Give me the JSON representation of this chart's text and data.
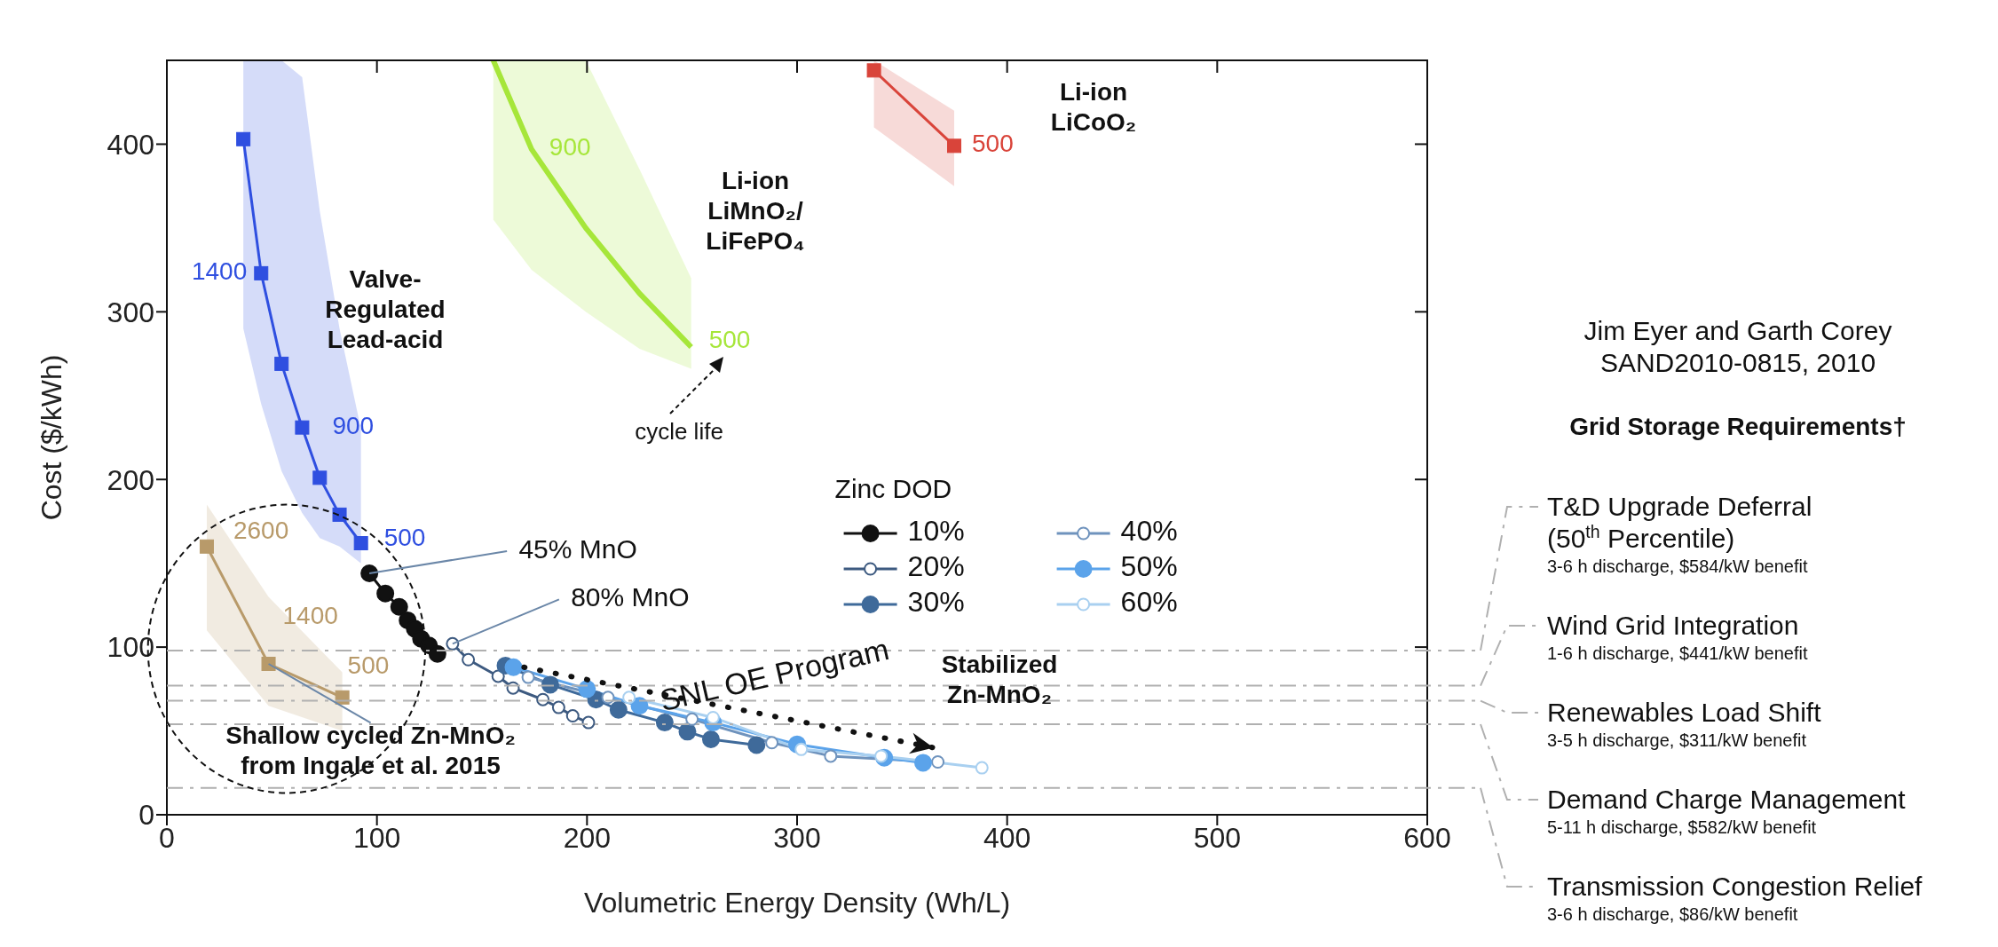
{
  "chart_data": {
    "type": "line",
    "xlabel": "Volumetric Energy Density (Wh/L)",
    "ylabel": "Cost ($/kWh)",
    "xlim": [
      0,
      600
    ],
    "ylim": [
      0,
      450
    ],
    "xticks": [
      0,
      100,
      200,
      300,
      400,
      500,
      600
    ],
    "yticks": [
      0,
      100,
      200,
      300,
      400
    ],
    "legend": "center",
    "legend_title": "Zinc DOD",
    "series": [
      {
        "color": "#2f4fe0",
        "marker": "square",
        "x": [
          36.4,
          44.9,
          54.6,
          64.4,
          72.8,
          82.2,
          92.4
        ],
        "values": [
          403,
          323,
          269,
          231,
          201,
          179,
          162
        ],
        "lower": [
          290,
          245,
          205,
          180,
          165,
          160,
          150
        ],
        "upper": [
          450,
          450,
          450,
          440,
          360,
          290,
          230
        ]
      },
      {
        "color": "#a6e63a",
        "marker": "none",
        "x": [
          155.4,
          173.6,
          199.4,
          225,
          249.6
        ],
        "values": [
          450,
          397,
          350,
          311,
          279
        ],
        "lower": [
          355,
          325,
          300,
          278,
          266
        ],
        "upper": [
          450,
          450,
          450,
          385,
          320
        ]
      },
      {
        "color": "#d9443a",
        "marker": "square",
        "x": [
          336.6,
          374.8
        ],
        "values": [
          444,
          399
        ],
        "lower": [
          410,
          375
        ],
        "upper": [
          450,
          420
        ]
      },
      {
        "color": "#b89a6a",
        "marker": "square",
        "x": [
          19,
          48.4,
          83.5
        ],
        "values": [
          160,
          90,
          70
        ],
        "lower": [
          110,
          65,
          50
        ],
        "upper": [
          185,
          130,
          85
        ]
      },
      {
        "name": "10%",
        "color": "#111111",
        "marker": "circle",
        "x": [
          96.4,
          104,
          110.6,
          114.6,
          118,
          121,
          124.8,
          128.8
        ],
        "values": [
          144,
          132,
          124,
          116,
          111,
          105,
          101,
          96
        ]
      },
      {
        "name": "20%",
        "color": "#3d5a80",
        "marker": "circle_open",
        "x": [
          136,
          143.5,
          157.7,
          164.8,
          179,
          186.5,
          193.2,
          200.7
        ],
        "values": [
          102,
          92.5,
          82.6,
          75.6,
          68.7,
          64,
          59,
          55
        ]
      },
      {
        "name": "30%",
        "color": "#3f6a9a",
        "marker": "circle",
        "x": [
          161.2,
          182.5,
          204.3,
          215,
          237,
          247.8,
          259,
          280.7
        ],
        "values": [
          89,
          77.6,
          68.7,
          62.6,
          55,
          49.6,
          45,
          41.6
        ]
      },
      {
        "name": "40%",
        "color": "#6f93bd",
        "marker": "circle_open",
        "x": [
          172,
          210,
          250,
          288,
          316,
          367
        ],
        "values": [
          82,
          70,
          57,
          43,
          35,
          31.5
        ]
      },
      {
        "name": "50%",
        "color": "#5ba3ea",
        "marker": "circle",
        "x": [
          165,
          200,
          225,
          260,
          300,
          341.5,
          360
        ],
        "values": [
          88,
          75,
          65,
          55,
          42,
          34,
          31
        ]
      },
      {
        "name": "60%",
        "color": "#a9d0f0",
        "marker": "circle_open",
        "x": [
          220,
          260,
          302,
          340,
          388
        ],
        "values": [
          70,
          58,
          39,
          35,
          28
        ]
      }
    ],
    "ref_lines": [
      {
        "axis": "y",
        "value": 98,
        "label": "T&D Upgrade Deferral\n(50$^{th}$ Percentile)\n3-6 h discharge, $584/kW benefit",
        "color": "#b0b0b0",
        "line_style": "dashed"
      },
      {
        "axis": "y",
        "value": 77,
        "label": "Wind Grid Integration\n1-6 h discharge, $441/kW benefit",
        "color": "#b0b0b0",
        "line_style": "dashed"
      },
      {
        "axis": "y",
        "value": 68,
        "label": "Renewables Load Shift\n3-5 h discharge, $311/kW benefit",
        "color": "#b0b0b0",
        "line_style": "dashed"
      },
      {
        "axis": "y",
        "value": 54,
        "label": "Demand Charge Management\n5-11 h discharge, $582/kW benefit",
        "color": "#b0b0b0",
        "line_style": "dashed"
      },
      {
        "axis": "y",
        "value": 16,
        "label": "Transmission Congestion Relief\n3-6 h discharge, $86/kW benefit",
        "color": "#b0b0b0",
        "line_style": "dashed"
      }
    ],
    "annotations": [
      "Valve-\nRegulated\nLead-acid",
      "Li-ion\nLiMnO₂/\nLiFePO₄",
      "Li-ion\nLiCoO₂",
      {
        "text": "Shallow cycled Zn-MnO₂\nfrom Ingale et al. 2015",
        "x": 48.4,
        "y": 90
      },
      "cycle life",
      {
        "text": "45% MnO",
        "x": 96.4,
        "y": 144
      },
      {
        "text": "80% MnO",
        "x": 136,
        "y": 102
      },
      "SNL OE Program",
      "Stabilized\nZn-MnO₂",
      "Jim Eyer and Garth Corey\nSAND2010-0815, 2010",
      "Grid Storage Requirements†",
      {
        "text": "1400",
        "x": 44.9,
        "y": 323
      },
      {
        "text": "900",
        "x": 64.4,
        "y": 231
      },
      {
        "text": "500",
        "x": 92.4,
        "y": 162
      },
      {
        "text": "900",
        "x": 173.6,
        "y": 397
      },
      {
        "text": "500",
        "x": 249.6,
        "y": 279
      },
      {
        "text": "500",
        "x": 374.8,
        "y": 399
      },
      {
        "text": "2600",
        "x": 19,
        "y": 160
      },
      {
        "text": "1400",
        "x": 48.4,
        "y": 90
      },
      {
        "text": "500",
        "x": 83.5,
        "y": 70
      }
    ]
  }
}
